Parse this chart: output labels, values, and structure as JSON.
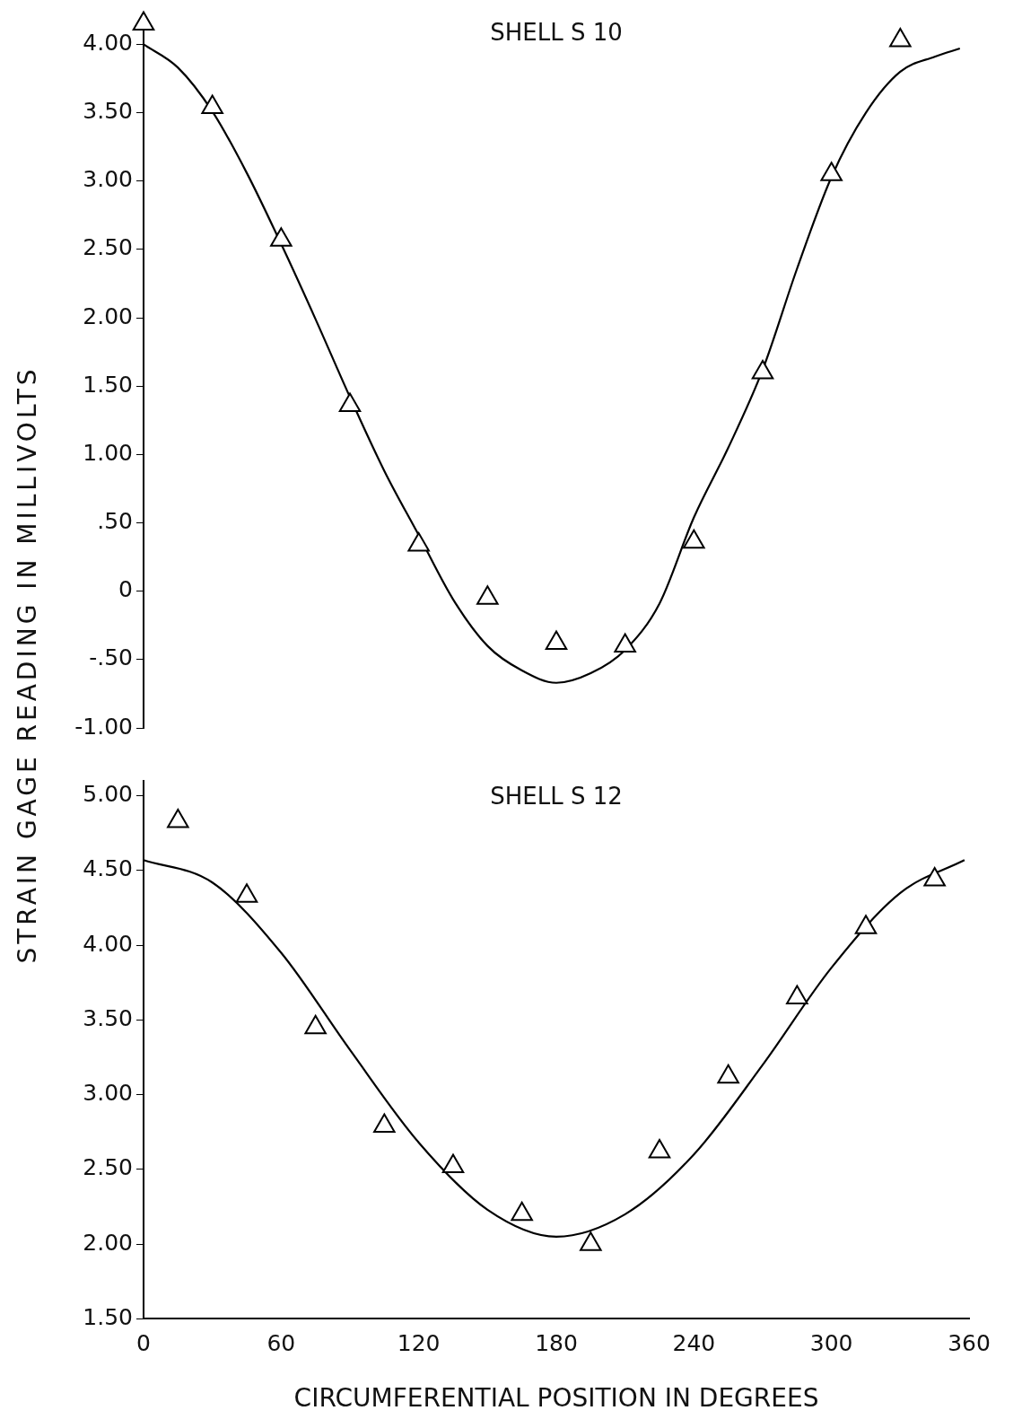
{
  "chart_data": [
    {
      "type": "scatter",
      "title": "SHELL S 10",
      "ylabel": "STRAIN GAGE READING IN MILLIVOLTS",
      "xlim": [
        0,
        360
      ],
      "ylim": [
        -1.0,
        4.2
      ],
      "yticks": [
        {
          "value": -1,
          "label": "-1.00"
        },
        {
          "value": -0.5,
          "label": "-.50"
        },
        {
          "value": 0,
          "label": "0"
        },
        {
          "value": 0.5,
          "label": ".50"
        },
        {
          "value": 1,
          "label": "1.00"
        },
        {
          "value": 1.5,
          "label": "1.50"
        },
        {
          "value": 2,
          "label": "2.00"
        },
        {
          "value": 2.5,
          "label": "2.50"
        },
        {
          "value": 3,
          "label": "3.00"
        },
        {
          "value": 3.5,
          "label": "3.50"
        },
        {
          "value": 4,
          "label": "4.00"
        }
      ],
      "tick_labels": "y",
      "grid": false,
      "legend": false,
      "marker": "triangle",
      "series": [
        {
          "color": "#000000",
          "x": [
            0,
            30,
            60,
            90,
            120,
            150,
            180,
            210,
            240,
            270,
            300,
            330
          ],
          "values": [
            4.15,
            3.54,
            2.57,
            1.36,
            0.34,
            -0.05,
            -0.38,
            -0.4,
            0.36,
            1.6,
            3.05,
            4.03
          ]
        },
        {
          "type": "line",
          "color": "#000000",
          "marker": "none",
          "x": [
            0,
            15,
            30,
            45,
            60,
            75,
            90,
            105,
            120,
            135,
            150,
            165,
            180,
            195,
            210,
            225,
            240,
            255,
            270,
            285,
            300,
            315,
            330,
            345,
            356
          ],
          "values": [
            4.0,
            3.83,
            3.51,
            3.06,
            2.54,
            1.99,
            1.42,
            0.88,
            0.41,
            -0.06,
            -0.4,
            -0.58,
            -0.67,
            -0.6,
            -0.43,
            -0.09,
            0.54,
            1.05,
            1.62,
            2.36,
            3.03,
            3.5,
            3.8,
            3.91,
            3.97
          ]
        }
      ]
    },
    {
      "type": "scatter",
      "title": "SHELL S 12",
      "xlabel": "CIRCUMFERENTIAL POSITION IN DEGREES",
      "xlim": [
        0,
        360
      ],
      "xticks": [
        0,
        60,
        120,
        180,
        240,
        300,
        360
      ],
      "ylim": [
        1.5,
        5.1
      ],
      "yticks": [
        {
          "value": 1.5,
          "label": "1.50"
        },
        {
          "value": 2,
          "label": "2.00"
        },
        {
          "value": 2.5,
          "label": "2.50"
        },
        {
          "value": 3,
          "label": "3.00"
        },
        {
          "value": 3.5,
          "label": "3.50"
        },
        {
          "value": 4,
          "label": "4.00"
        },
        {
          "value": 4.5,
          "label": "4.50"
        },
        {
          "value": 5,
          "label": "5.00"
        }
      ],
      "grid": false,
      "legend": false,
      "marker": "triangle",
      "series": [
        {
          "color": "#000000",
          "x": [
            15,
            45,
            75,
            105,
            135,
            165,
            195,
            225,
            255,
            285,
            315,
            345
          ],
          "values": [
            4.83,
            4.33,
            3.45,
            2.79,
            2.52,
            2.2,
            2.0,
            2.62,
            3.12,
            3.65,
            4.12,
            4.44
          ]
        },
        {
          "type": "line",
          "color": "#000000",
          "marker": "none",
          "x": [
            0,
            30,
            60,
            90,
            120,
            150,
            180,
            210,
            240,
            270,
            300,
            330,
            358
          ],
          "values": [
            4.57,
            4.42,
            3.95,
            3.3,
            2.68,
            2.23,
            2.05,
            2.2,
            2.6,
            3.2,
            3.85,
            4.35,
            4.57
          ]
        }
      ]
    }
  ]
}
